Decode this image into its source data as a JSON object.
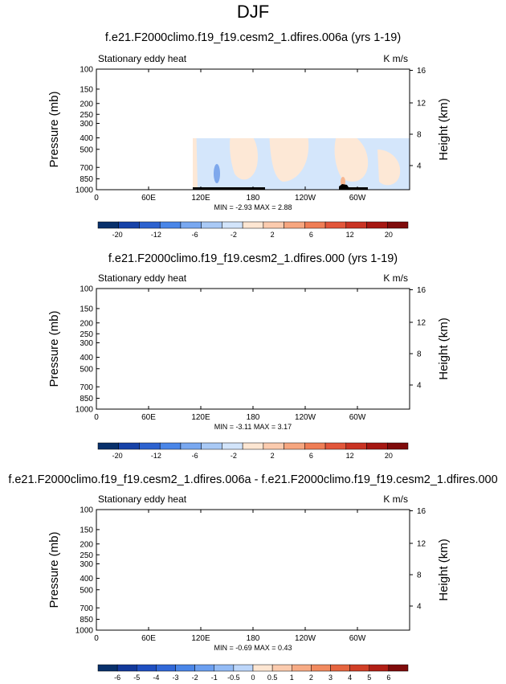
{
  "figure_title": "DJF",
  "chart_data": [
    {
      "type": "heatmap",
      "title": "f.e21.F2000climo.f19_f19.cesm2_1.dfires.006a (yrs 1-19)",
      "left_label": "Stationary eddy heat",
      "right_label": "K m/s",
      "ylabel": "Pressure (mb)",
      "ylabel_right": "Height (km)",
      "xticks": [
        "0",
        "60E",
        "120E",
        "180",
        "120W",
        "60W"
      ],
      "yticks": [
        "100",
        "150",
        "200",
        "250",
        "300",
        "400",
        "500",
        "700",
        "850",
        "1000"
      ],
      "yticks_right": [
        "16",
        "12",
        "8",
        "4"
      ],
      "stats": "MIN = -2.93   MAX =  2.88",
      "colorbar_labels": [
        "-20",
        "-12",
        "-6",
        "-2",
        "2",
        "6",
        "12",
        "20"
      ],
      "colorbar_colors": [
        "#08306b",
        "#1642a8",
        "#2c62cf",
        "#4a86e8",
        "#79a8f0",
        "#a9c9f5",
        "#d2e4fa",
        "#fde6d2",
        "#fbcbae",
        "#f6a67f",
        "#ef7d55",
        "#e2563a",
        "#c93323",
        "#a61712",
        "#7f0b0b"
      ],
      "min": -2.93,
      "max": 2.88
    },
    {
      "type": "heatmap",
      "title": "f.e21.F2000climo.f19_f19.cesm2_1.dfires.000 (yrs 1-19)",
      "left_label": "Stationary eddy heat",
      "right_label": "K m/s",
      "ylabel": "Pressure (mb)",
      "ylabel_right": "Height (km)",
      "xticks": [
        "0",
        "60E",
        "120E",
        "180",
        "120W",
        "60W"
      ],
      "yticks": [
        "100",
        "150",
        "200",
        "250",
        "300",
        "400",
        "500",
        "700",
        "850",
        "1000"
      ],
      "yticks_right": [
        "16",
        "12",
        "8",
        "4"
      ],
      "stats": "MIN = -3.11   MAX =  3.17",
      "colorbar_labels": [
        "-20",
        "-12",
        "-6",
        "-2",
        "2",
        "6",
        "12",
        "20"
      ],
      "colorbar_colors": [
        "#08306b",
        "#1642a8",
        "#2c62cf",
        "#4a86e8",
        "#79a8f0",
        "#a9c9f5",
        "#d2e4fa",
        "#fde6d2",
        "#fbcbae",
        "#f6a67f",
        "#ef7d55",
        "#e2563a",
        "#c93323",
        "#a61712",
        "#7f0b0b"
      ],
      "min": -3.11,
      "max": 3.17
    },
    {
      "type": "heatmap",
      "title": "f.e21.F2000climo.f19_f19.cesm2_1.dfires.006a - f.e21.F2000climo.f19_f19.cesm2_1.dfires.000",
      "left_label": "Stationary eddy heat",
      "right_label": "K m/s",
      "ylabel": "Pressure (mb)",
      "ylabel_right": "Height (km)",
      "xticks": [
        "0",
        "60E",
        "120E",
        "180",
        "120W",
        "60W"
      ],
      "yticks": [
        "100",
        "150",
        "200",
        "250",
        "300",
        "400",
        "500",
        "700",
        "850",
        "1000"
      ],
      "yticks_right": [
        "16",
        "12",
        "8",
        "4"
      ],
      "stats": "MIN = -0.69   MAX =  0.43",
      "colorbar_labels": [
        "-6",
        "-5",
        "-4",
        "-3",
        "-2",
        "-1",
        "-0.5",
        "0",
        "0.5",
        "1",
        "2",
        "3",
        "4",
        "5",
        "6"
      ],
      "colorbar_colors": [
        "#08306b",
        "#12399b",
        "#1f4fc1",
        "#3168d8",
        "#4a86e8",
        "#6b9ff0",
        "#93bbf5",
        "#bcd6fa",
        "#fde6d2",
        "#fbcbae",
        "#f7ab85",
        "#f18a5f",
        "#e6653f",
        "#d13f26",
        "#b11f15",
        "#7f0b0b"
      ],
      "min": -0.69,
      "max": 0.43
    }
  ]
}
